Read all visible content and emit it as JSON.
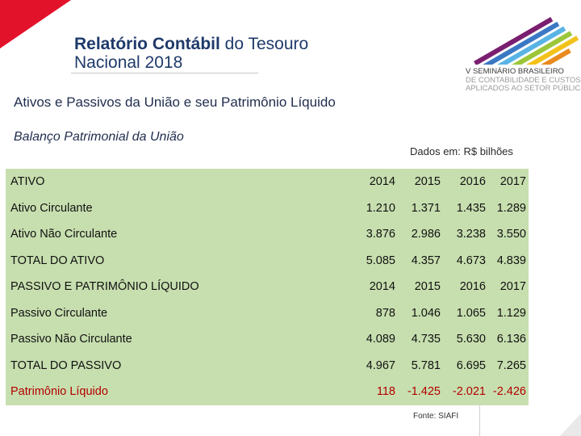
{
  "header": {
    "title_bold": "Relatório Contábil",
    "title_rest": " do Tesouro",
    "title_line2": "Nacional 2018"
  },
  "logo": {
    "line1": "V SEMINÁRIO BRASILEIRO",
    "line2": "DE CONTABILIDADE E CUSTOS",
    "line3": "APLICADOS AO SETOR PÚBLICO"
  },
  "subtitle": "Ativos e Passivos da União e seu Patrimônio Líquido",
  "section_title": "Balanço Patrimonial da União",
  "units_note": "Dados em: R$ bilhões",
  "table": {
    "rows": [
      {
        "label": "ATIVO",
        "values": [
          "2014",
          "2015",
          "2016",
          "2017"
        ]
      },
      {
        "label": "Ativo Circulante",
        "values": [
          "1.210",
          "1.371",
          "1.435",
          "1.289"
        ]
      },
      {
        "label": "Ativo Não Circulante",
        "values": [
          "3.876",
          "2.986",
          "3.238",
          "3.550"
        ]
      },
      {
        "label": "TOTAL DO ATIVO",
        "values": [
          "5.085",
          "4.357",
          "4.673",
          "4.839"
        ]
      },
      {
        "label": "PASSIVO E PATRIMÔNIO LÍQUIDO",
        "values": [
          "2014",
          "2015",
          "2016",
          "2017"
        ]
      },
      {
        "label": "Passivo Circulante",
        "values": [
          "878",
          "1.046",
          "1.065",
          "1.129"
        ]
      },
      {
        "label": "Passivo Não Circulante",
        "values": [
          "4.089",
          "4.735",
          "5.630",
          "6.136"
        ]
      },
      {
        "label": "TOTAL DO PASSIVO",
        "values": [
          "4.967",
          "5.781",
          "6.695",
          "7.265"
        ]
      },
      {
        "label": "Patrimônio Líquido",
        "values": [
          "118",
          "-1.425",
          "-2.021",
          "-2.426"
        ]
      }
    ]
  },
  "source": "Fonte: SIAFI",
  "colors": {
    "table_bg": "#c7dfaf",
    "negative_row": "#b30000",
    "title": "#1f3a6a",
    "accent_red": "#e3122b"
  }
}
